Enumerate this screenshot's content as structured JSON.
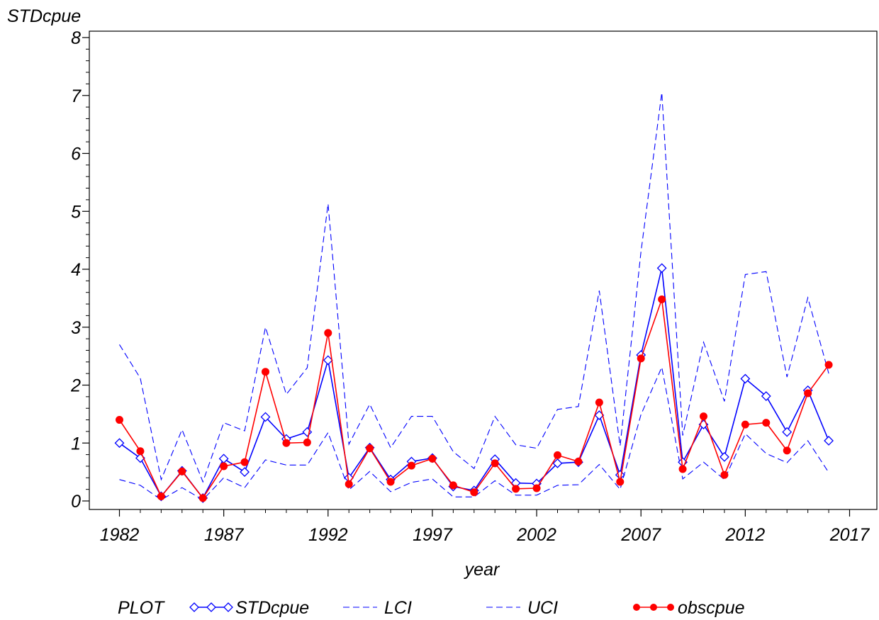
{
  "chart_data": {
    "type": "line",
    "ylabel": "STDcpue",
    "xlabel": "year",
    "xlim": [
      1980,
      2018
    ],
    "ylim": [
      0,
      8
    ],
    "xticks": [
      1982,
      1987,
      1992,
      1997,
      2002,
      2007,
      2012,
      2017
    ],
    "yticks": [
      0,
      1,
      2,
      3,
      4,
      5,
      6,
      7,
      8
    ],
    "grid": false,
    "legend_title": "PLOT",
    "legend_position": "bottom",
    "x": [
      1982,
      1983,
      1984,
      1985,
      1986,
      1987,
      1988,
      1989,
      1990,
      1991,
      1992,
      1993,
      1994,
      1995,
      1996,
      1997,
      1998,
      1999,
      2000,
      2001,
      2002,
      2003,
      2004,
      2005,
      2006,
      2007,
      2008,
      2009,
      2010,
      2011,
      2012,
      2013,
      2014,
      2015,
      2016
    ],
    "series": [
      {
        "name": "STDcpue",
        "color": "#0000ff",
        "style": "solid-diamond",
        "values": [
          1.0,
          0.74,
          0.08,
          0.52,
          0.05,
          0.73,
          0.5,
          1.45,
          1.07,
          1.19,
          2.43,
          0.4,
          0.92,
          0.37,
          0.68,
          0.74,
          0.25,
          0.18,
          0.72,
          0.31,
          0.3,
          0.65,
          0.67,
          1.48,
          0.45,
          2.52,
          4.02,
          0.67,
          1.32,
          0.76,
          2.11,
          1.81,
          1.19,
          1.91,
          1.04
        ]
      },
      {
        "name": "LCI",
        "color": "#0000ff",
        "style": "dashed",
        "values": [
          0.37,
          0.27,
          0.02,
          0.23,
          0.02,
          0.4,
          0.23,
          0.71,
          0.62,
          0.62,
          1.18,
          0.19,
          0.51,
          0.16,
          0.32,
          0.38,
          0.07,
          0.07,
          0.35,
          0.1,
          0.1,
          0.27,
          0.28,
          0.63,
          0.2,
          1.49,
          2.31,
          0.38,
          0.67,
          0.37,
          1.16,
          0.82,
          0.66,
          1.04,
          0.49
        ]
      },
      {
        "name": "UCI",
        "color": "#0000ff",
        "style": "dashed",
        "values": [
          2.7,
          2.12,
          0.37,
          1.23,
          0.33,
          1.35,
          1.21,
          3.0,
          1.84,
          2.3,
          5.13,
          0.98,
          1.67,
          0.92,
          1.46,
          1.46,
          0.85,
          0.56,
          1.46,
          0.97,
          0.91,
          1.58,
          1.63,
          3.63,
          0.95,
          4.3,
          7.05,
          1.13,
          2.74,
          1.72,
          3.91,
          3.96,
          2.14,
          3.51,
          2.2
        ]
      },
      {
        "name": "obscpue",
        "color": "#ff0000",
        "style": "solid-dot",
        "values": [
          1.4,
          0.86,
          0.08,
          0.51,
          0.05,
          0.6,
          0.67,
          2.23,
          1.0,
          1.01,
          2.9,
          0.29,
          0.91,
          0.33,
          0.61,
          0.73,
          0.27,
          0.15,
          0.65,
          0.21,
          0.22,
          0.79,
          0.68,
          1.7,
          0.33,
          2.46,
          3.48,
          0.55,
          1.46,
          0.45,
          1.32,
          1.35,
          0.87,
          1.86,
          2.35
        ]
      }
    ]
  }
}
